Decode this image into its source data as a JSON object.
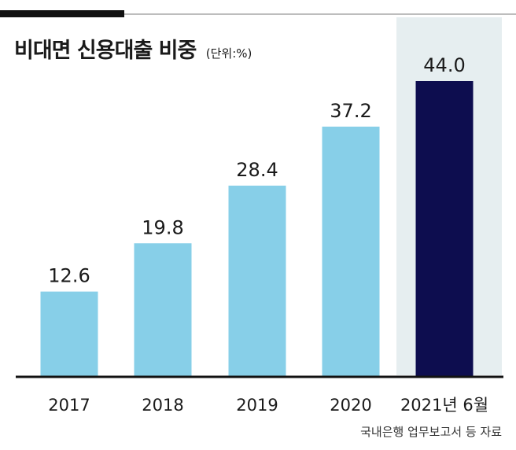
{
  "chart_data": {
    "type": "bar",
    "title": "비대면 신용대출 비중",
    "unit": "(단위:%)",
    "categories": [
      "2017",
      "2018",
      "2019",
      "2020",
      "2021년 6월"
    ],
    "values": [
      12.6,
      19.8,
      28.4,
      37.2,
      44.0
    ],
    "value_labels": [
      "12.6",
      "19.8",
      "28.4",
      "37.2",
      "44.0"
    ],
    "highlight_index": 4,
    "ylim": [
      0,
      44.0
    ],
    "bar_color": "#87cfe8",
    "highlight_color": "#0d0d4f",
    "highlight_band_color": "#e6eef0",
    "source": "국내은행 업무보고서 등 자료"
  }
}
